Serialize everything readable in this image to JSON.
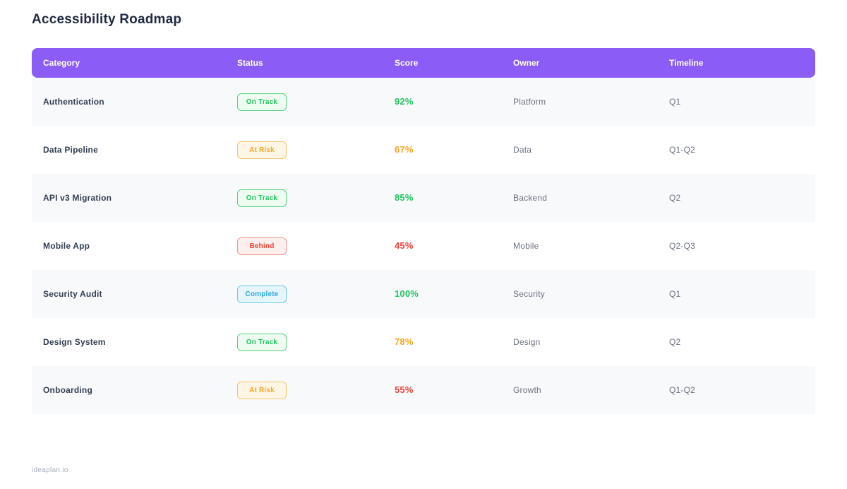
{
  "page": {
    "title": "Accessibility Roadmap",
    "footer": "ideaplan.io"
  },
  "table": {
    "columns": [
      "Category",
      "Status",
      "Score",
      "Owner",
      "Timeline"
    ],
    "header_bg": "#8b5cf6",
    "rows": [
      {
        "category": "Authentication",
        "status": "On Track",
        "status_type": "on-track",
        "score": "92%",
        "score_color": "#22c55e",
        "owner": "Platform",
        "timeline": "Q1"
      },
      {
        "category": "Data Pipeline",
        "status": "At Risk",
        "status_type": "at-risk",
        "score": "67%",
        "score_color": "#f6a723",
        "owner": "Data",
        "timeline": "Q1-Q2"
      },
      {
        "category": "API v3 Migration",
        "status": "On Track",
        "status_type": "on-track",
        "score": "85%",
        "score_color": "#22c55e",
        "owner": "Backend",
        "timeline": "Q2"
      },
      {
        "category": "Mobile App",
        "status": "Behind",
        "status_type": "behind",
        "score": "45%",
        "score_color": "#ee4437",
        "owner": "Mobile",
        "timeline": "Q2-Q3"
      },
      {
        "category": "Security Audit",
        "status": "Complete",
        "status_type": "complete",
        "score": "100%",
        "score_color": "#22c55e",
        "owner": "Security",
        "timeline": "Q1"
      },
      {
        "category": "Design System",
        "status": "On Track",
        "status_type": "on-track",
        "score": "78%",
        "score_color": "#f6a723",
        "owner": "Design",
        "timeline": "Q2"
      },
      {
        "category": "Onboarding",
        "status": "At Risk",
        "status_type": "at-risk",
        "score": "55%",
        "score_color": "#ee4437",
        "owner": "Growth",
        "timeline": "Q1-Q2"
      }
    ]
  },
  "status_styles": {
    "on-track": {
      "text": "#22c55e",
      "bg": "#edfbf1",
      "border": "#55d57f"
    },
    "at-risk": {
      "text": "#f6a723",
      "bg": "#fef5e4",
      "border": "#f9c468"
    },
    "behind": {
      "text": "#ee4437",
      "bg": "#fdefed",
      "border": "#f4978e"
    },
    "complete": {
      "text": "#2baae0",
      "bg": "#e5f5fc",
      "border": "#6ec9ec"
    }
  }
}
